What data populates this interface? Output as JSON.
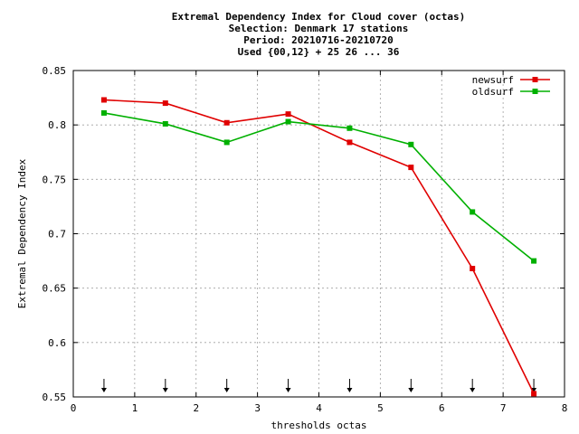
{
  "chart_data": {
    "type": "line",
    "title_lines": [
      "Extremal Dependency Index  for Cloud cover (octas)",
      "Selection: Denmark     17 stations",
      "Period: 20210716-20210720",
      "Used {00,12} + 25 26 ... 36"
    ],
    "xlabel": "thresholds octas",
    "ylabel": "Extremal Dependency Index",
    "xlim": [
      0,
      8
    ],
    "ylim": [
      0.55,
      0.85
    ],
    "xticks": [
      0,
      1,
      2,
      3,
      4,
      5,
      6,
      7,
      8
    ],
    "xtick_labels": [
      "0",
      "1",
      "2",
      "3",
      "4",
      "5",
      "6",
      "7",
      "8"
    ],
    "yticks": [
      0.55,
      0.6,
      0.65,
      0.7,
      0.75,
      0.8,
      0.85
    ],
    "ytick_labels": [
      "0.55",
      "0.6",
      "0.65",
      "0.7",
      "0.75",
      "0.8",
      "0.85"
    ],
    "grid": true,
    "legend_position": "top-right",
    "x": [
      0.5,
      1.5,
      2.5,
      3.5,
      4.5,
      5.5,
      6.5,
      7.5
    ],
    "series": [
      {
        "name": "newsurf",
        "color": "#e00000",
        "values": [
          0.823,
          0.82,
          0.802,
          0.81,
          0.784,
          0.761,
          0.668,
          0.553
        ]
      },
      {
        "name": "oldsurf",
        "color": "#00b000",
        "values": [
          0.811,
          0.801,
          0.784,
          0.803,
          0.797,
          0.782,
          0.72,
          0.675
        ]
      }
    ],
    "markers_arrows_x": [
      0.5,
      1.5,
      2.5,
      3.5,
      4.5,
      5.5,
      6.5,
      7.5
    ]
  }
}
